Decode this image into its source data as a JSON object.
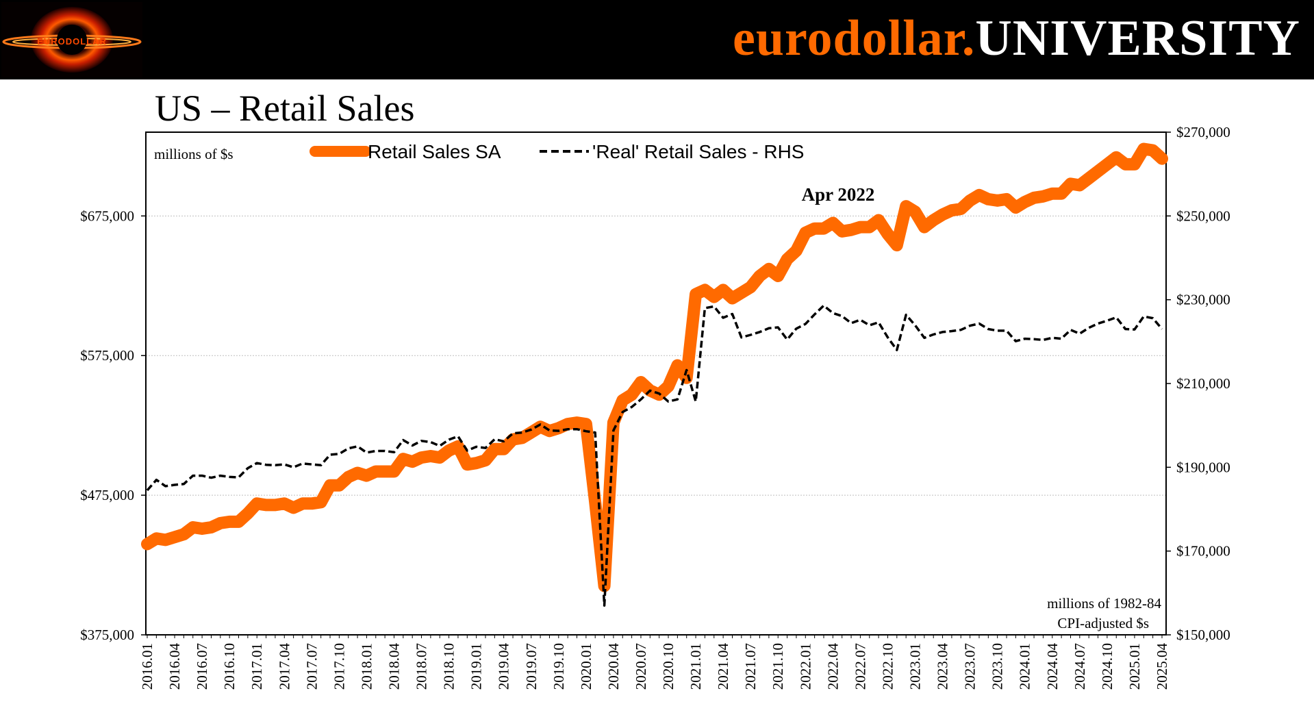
{
  "header": {
    "brand_part1": "eurodollar.",
    "brand_part2": "UNIVERSITY",
    "logo_text": "EURODOLLAR"
  },
  "page_title": "US – Retail Sales",
  "colors": {
    "banner": "#000000",
    "brand_orange": "#ff6a00",
    "brand_white": "#ffffff",
    "series_sales": "#ff6a00",
    "series_real": "#000000",
    "gridline": "#bfbfbf"
  },
  "chart_data": {
    "type": "line",
    "title": "US – Retail Sales",
    "left_axis_note": "millions of $s",
    "right_axis_note_line1": "millions of 1982-84",
    "right_axis_note_line2": "CPI-adjusted $s",
    "annotation": "Apr 2022",
    "annotation_x": "2022.04",
    "legend_position": "top",
    "ylim_left": [
      375000,
      735000
    ],
    "ylim_right": [
      150000,
      270000
    ],
    "yticks_left": [
      375000,
      475000,
      575000,
      675000
    ],
    "ytick_labels_left": [
      "$375,000",
      "$475,000",
      "$575,000",
      "$675,000"
    ],
    "yticks_right": [
      150000,
      170000,
      190000,
      210000,
      230000,
      250000,
      270000
    ],
    "ytick_labels_right": [
      "$150,000",
      "$170,000",
      "$190,000",
      "$210,000",
      "$230,000",
      "$250,000",
      "$270,000"
    ],
    "x_tick_labels": [
      "2016.01",
      "2016.04",
      "2016.07",
      "2016.10",
      "2017.01",
      "2017.04",
      "2017.07",
      "2017.10",
      "2018.01",
      "2018.04",
      "2018.07",
      "2018.10",
      "2019.01",
      "2019.04",
      "2019.07",
      "2019.10",
      "2020.01",
      "2020.04",
      "2020.07",
      "2020.10",
      "2021.01",
      "2021.04",
      "2021.07",
      "2021.10",
      "2022.01",
      "2022.04",
      "2022.07",
      "2022.10",
      "2023.01",
      "2023.04",
      "2023.07",
      "2023.10",
      "2024.01",
      "2024.04",
      "2024.07",
      "2024.10",
      "2025.01",
      "2025.04"
    ],
    "start": "2016.01",
    "series": [
      {
        "name": "Retail Sales SA",
        "axis": "left",
        "style": "thick-solid",
        "values": [
          440000,
          444000,
          443000,
          445000,
          447000,
          452000,
          451000,
          452000,
          455000,
          456000,
          456000,
          462000,
          469000,
          468000,
          468000,
          469000,
          466000,
          469000,
          469000,
          470000,
          482000,
          482000,
          488000,
          491000,
          489000,
          492000,
          492000,
          492000,
          501000,
          499000,
          502000,
          503000,
          502000,
          507000,
          510000,
          497000,
          498000,
          500000,
          508000,
          508000,
          515000,
          516000,
          520000,
          524000,
          521000,
          523000,
          526000,
          527000,
          526000,
          470000,
          410000,
          527000,
          543000,
          547000,
          556000,
          550000,
          547000,
          553000,
          568000,
          559000,
          619000,
          622000,
          617000,
          622000,
          616000,
          620000,
          624000,
          632000,
          637000,
          632000,
          644000,
          650000,
          663000,
          666000,
          666000,
          670000,
          664000,
          665000,
          667000,
          667000,
          672000,
          662000,
          654000,
          682000,
          678000,
          667000,
          672000,
          676000,
          679000,
          680000,
          686000,
          690000,
          687000,
          686000,
          687000,
          681000,
          685000,
          688000,
          689000,
          691000,
          691000,
          698000,
          697000,
          702000,
          707000,
          712000,
          717000,
          712000,
          712000,
          723000,
          722000,
          716000
        ]
      },
      {
        "name": "'Real' Retail Sales - RHS",
        "axis": "right",
        "style": "dashed",
        "values": [
          184500,
          187000,
          185500,
          185800,
          186000,
          188000,
          188000,
          187500,
          188000,
          187700,
          187600,
          189800,
          191000,
          190600,
          190500,
          190700,
          190000,
          190900,
          190700,
          190500,
          193000,
          193200,
          194500,
          195000,
          193500,
          193900,
          193900,
          193600,
          196500,
          195200,
          196300,
          196000,
          195100,
          196600,
          197400,
          194000,
          194900,
          194600,
          196700,
          196200,
          198100,
          198300,
          199000,
          200200,
          198800,
          198700,
          199100,
          199100,
          198600,
          198300,
          157000,
          198800,
          203200,
          204400,
          206200,
          208300,
          207600,
          205700,
          206200,
          213200,
          205700,
          228000,
          228400,
          225700,
          226600,
          221000,
          221600,
          222300,
          223200,
          223400,
          220500,
          223100,
          224200,
          226500,
          228600,
          226800,
          226100,
          224400,
          225200,
          223900,
          224600,
          221000,
          218000,
          226400,
          223900,
          220900,
          221700,
          222300,
          222500,
          222800,
          223800,
          224300,
          223000,
          222600,
          222600,
          220100,
          220700,
          220600,
          220400,
          220900,
          220700,
          222800,
          221900,
          223300,
          224300,
          225000,
          225800,
          223000,
          222900,
          226000,
          225600,
          223000
        ]
      }
    ]
  }
}
